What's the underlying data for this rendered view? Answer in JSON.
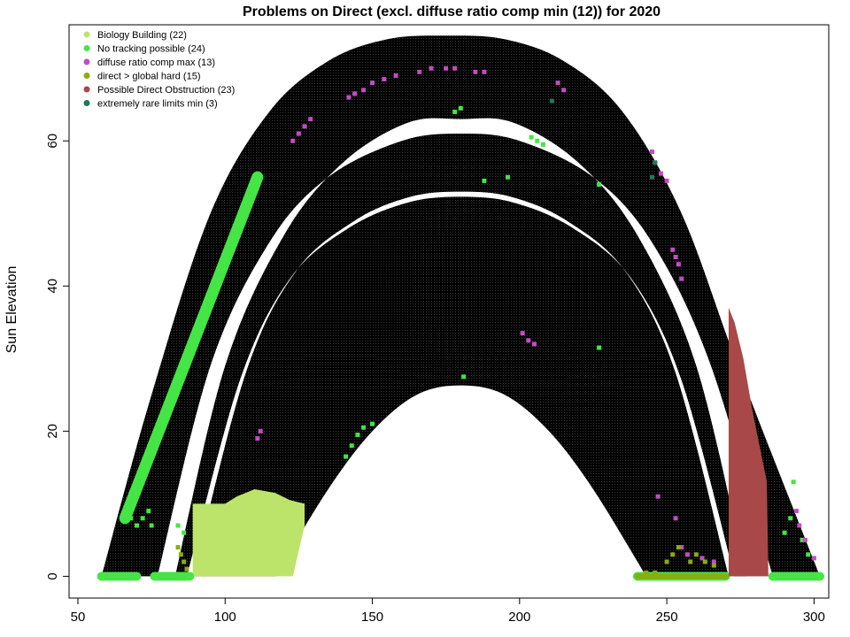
{
  "chart_data": {
    "type": "scatter",
    "title": "Problems on Direct (excl. diffuse ratio comp min (12)) for 2020",
    "xlabel": "",
    "ylabel": "Sun Elevation",
    "xlim": [
      47,
      305
    ],
    "ylim": [
      -3,
      76
    ],
    "x_ticks": [
      50,
      100,
      150,
      200,
      250,
      300
    ],
    "y_ticks": [
      0,
      20,
      40,
      60
    ],
    "grid": false,
    "legend_position": "top-left",
    "background_point_color": "#000000",
    "sun_path": {
      "description_only_for_render": false,
      "inner_curve": [
        [
          117,
          0
        ],
        [
          135,
          12
        ],
        [
          150,
          20
        ],
        [
          165,
          25
        ],
        [
          180,
          26.3
        ],
        [
          195,
          25
        ],
        [
          210,
          20
        ],
        [
          225,
          12
        ],
        [
          243,
          0
        ]
      ],
      "outer_curve": [
        [
          58,
          0
        ],
        [
          75,
          25
        ],
        [
          95,
          50
        ],
        [
          115,
          64
        ],
        [
          135,
          71
        ],
        [
          155,
          74
        ],
        [
          175,
          74.5
        ],
        [
          195,
          74
        ],
        [
          215,
          71
        ],
        [
          235,
          64
        ],
        [
          255,
          50
        ],
        [
          275,
          28
        ],
        [
          302,
          0
        ]
      ],
      "white_bands": [
        {
          "lower": [
            [
              77,
              0
            ],
            [
              95,
              29
            ],
            [
              115,
              46
            ],
            [
              135,
              55
            ],
            [
              160,
              60
            ],
            [
              180,
              61
            ],
            [
              200,
              60
            ],
            [
              225,
              55
            ],
            [
              245,
              46
            ],
            [
              265,
              29
            ],
            [
              286,
              0
            ]
          ],
          "upper": [
            [
              83,
              0
            ],
            [
              100,
              29
            ],
            [
              120,
              47
            ],
            [
              140,
              57
            ],
            [
              162,
              62.5
            ],
            [
              180,
              63
            ],
            [
              198,
              62.5
            ],
            [
              220,
              57
            ],
            [
              240,
              47
            ],
            [
              260,
              29
            ],
            [
              277,
              0
            ]
          ]
        },
        {
          "lower": [
            [
              87,
              0
            ],
            [
              105,
              27
            ],
            [
              122,
              41
            ],
            [
              142,
              48
            ],
            [
              162,
              51.5
            ],
            [
              180,
              52.3
            ],
            [
              198,
              51.5
            ],
            [
              218,
              48
            ],
            [
              238,
              41
            ],
            [
              255,
              27
            ],
            [
              273,
              0
            ]
          ],
          "upper": [
            [
              89,
              0
            ],
            [
              107,
              28
            ],
            [
              124,
              42
            ],
            [
              144,
              49
            ],
            [
              163,
              52.3
            ],
            [
              180,
              53
            ],
            [
              197,
              52.3
            ],
            [
              216,
              49
            ],
            [
              236,
              42
            ],
            [
              253,
              28
            ],
            [
              271,
              0
            ]
          ]
        }
      ]
    },
    "series": [
      {
        "name": "Biology Building (22)",
        "color": "#bde46a",
        "regions": [
          {
            "kind": "polygon",
            "points": [
              [
                89,
                0
              ],
              [
                89,
                10
              ],
              [
                100,
                10
              ],
              [
                104,
                11
              ],
              [
                110,
                12
              ],
              [
                117,
                11.5
              ],
              [
                122,
                10.5
              ],
              [
                127,
                10
              ],
              [
                127,
                7
              ],
              [
                123,
                0
              ]
            ]
          }
        ],
        "points": []
      },
      {
        "name": "No tracking possible (24)",
        "color": "#44e544",
        "regions": [
          {
            "kind": "band",
            "from": [
              66,
              8
            ],
            "to": [
              111,
              55
            ],
            "width": 1.6
          },
          {
            "kind": "band",
            "from": [
              58,
              0
            ],
            "to": [
              70,
              0
            ],
            "width": 1.2
          },
          {
            "kind": "band",
            "from": [
              76,
              0
            ],
            "to": [
              88,
              0
            ],
            "width": 1.2
          },
          {
            "kind": "band",
            "from": [
              240,
              0
            ],
            "to": [
              270,
              0
            ],
            "width": 1.2
          },
          {
            "kind": "band",
            "from": [
              286,
              0
            ],
            "to": [
              302,
              0
            ],
            "width": 1.2
          }
        ],
        "points": [
          [
            68,
            8
          ],
          [
            70,
            7
          ],
          [
            72,
            8
          ],
          [
            74,
            9
          ],
          [
            75,
            7
          ],
          [
            84,
            7
          ],
          [
            86,
            6
          ],
          [
            141,
            16.5
          ],
          [
            143,
            18
          ],
          [
            145,
            19.5
          ],
          [
            147,
            20.5
          ],
          [
            150,
            21
          ],
          [
            178,
            64
          ],
          [
            180,
            64.5
          ],
          [
            188,
            54.5
          ],
          [
            196,
            55
          ],
          [
            204,
            60.5
          ],
          [
            206,
            60
          ],
          [
            208,
            59.5
          ],
          [
            227,
            54
          ],
          [
            227,
            31.5
          ],
          [
            181,
            27.5
          ],
          [
            280,
            6
          ],
          [
            290,
            6
          ],
          [
            292,
            8
          ],
          [
            293,
            13
          ],
          [
            296,
            5
          ],
          [
            298,
            3
          ]
        ]
      },
      {
        "name": "diffuse ratio comp max (13)",
        "color": "#c44cc4",
        "regions": [],
        "points": [
          [
            123,
            60
          ],
          [
            125,
            61
          ],
          [
            127,
            62
          ],
          [
            129,
            63
          ],
          [
            142,
            66
          ],
          [
            144,
            66.5
          ],
          [
            147,
            67
          ],
          [
            150,
            68
          ],
          [
            154,
            68.5
          ],
          [
            158,
            69
          ],
          [
            166,
            69.5
          ],
          [
            170,
            70
          ],
          [
            175,
            70
          ],
          [
            178,
            70
          ],
          [
            185,
            69.5
          ],
          [
            188,
            69.5
          ],
          [
            213,
            68
          ],
          [
            215,
            67
          ],
          [
            245,
            58.5
          ],
          [
            246,
            57
          ],
          [
            248,
            55.5
          ],
          [
            250,
            54.5
          ],
          [
            252,
            45
          ],
          [
            253,
            44
          ],
          [
            254,
            43
          ],
          [
            255,
            41
          ],
          [
            201,
            33.5
          ],
          [
            203,
            32.5
          ],
          [
            205,
            32
          ],
          [
            112,
            20
          ],
          [
            111,
            19
          ],
          [
            247,
            11
          ],
          [
            253,
            8
          ],
          [
            255,
            4
          ],
          [
            257,
            3
          ],
          [
            262,
            2.5
          ],
          [
            266,
            2
          ],
          [
            276,
            12
          ],
          [
            294,
            9
          ],
          [
            295,
            7
          ],
          [
            297,
            5
          ],
          [
            300,
            2.5
          ]
        ]
      },
      {
        "name": "direct > global hard (15)",
        "color": "#8aac10",
        "regions": [
          {
            "kind": "band",
            "from": [
              240,
              0
            ],
            "to": [
              270,
              0
            ],
            "width": 0.8
          }
        ],
        "points": [
          [
            84,
            4
          ],
          [
            85,
            3
          ],
          [
            86,
            2
          ],
          [
            87,
            1
          ],
          [
            250,
            2
          ],
          [
            252,
            3
          ],
          [
            254,
            4
          ],
          [
            258,
            2
          ],
          [
            260,
            3
          ],
          [
            263,
            2
          ],
          [
            266,
            1.5
          ],
          [
            246,
            0.5
          ],
          [
            243,
            0.5
          ]
        ]
      },
      {
        "name": "Possible Direct Obstruction (23)",
        "color": "#a84848",
        "regions": [
          {
            "kind": "polygon",
            "points": [
              [
                271,
                0
              ],
              [
                271,
                37
              ],
              [
                273,
                35
              ],
              [
                276,
                30
              ],
              [
                279,
                23
              ],
              [
                282,
                17
              ],
              [
                284,
                13
              ],
              [
                284.5,
                0
              ]
            ]
          }
        ],
        "points": []
      },
      {
        "name": "extremely rare limits min (3)",
        "color": "#1a7a5a",
        "regions": [],
        "points": [
          [
            211,
            65.5
          ],
          [
            245,
            55
          ],
          [
            246,
            57
          ]
        ]
      }
    ]
  }
}
